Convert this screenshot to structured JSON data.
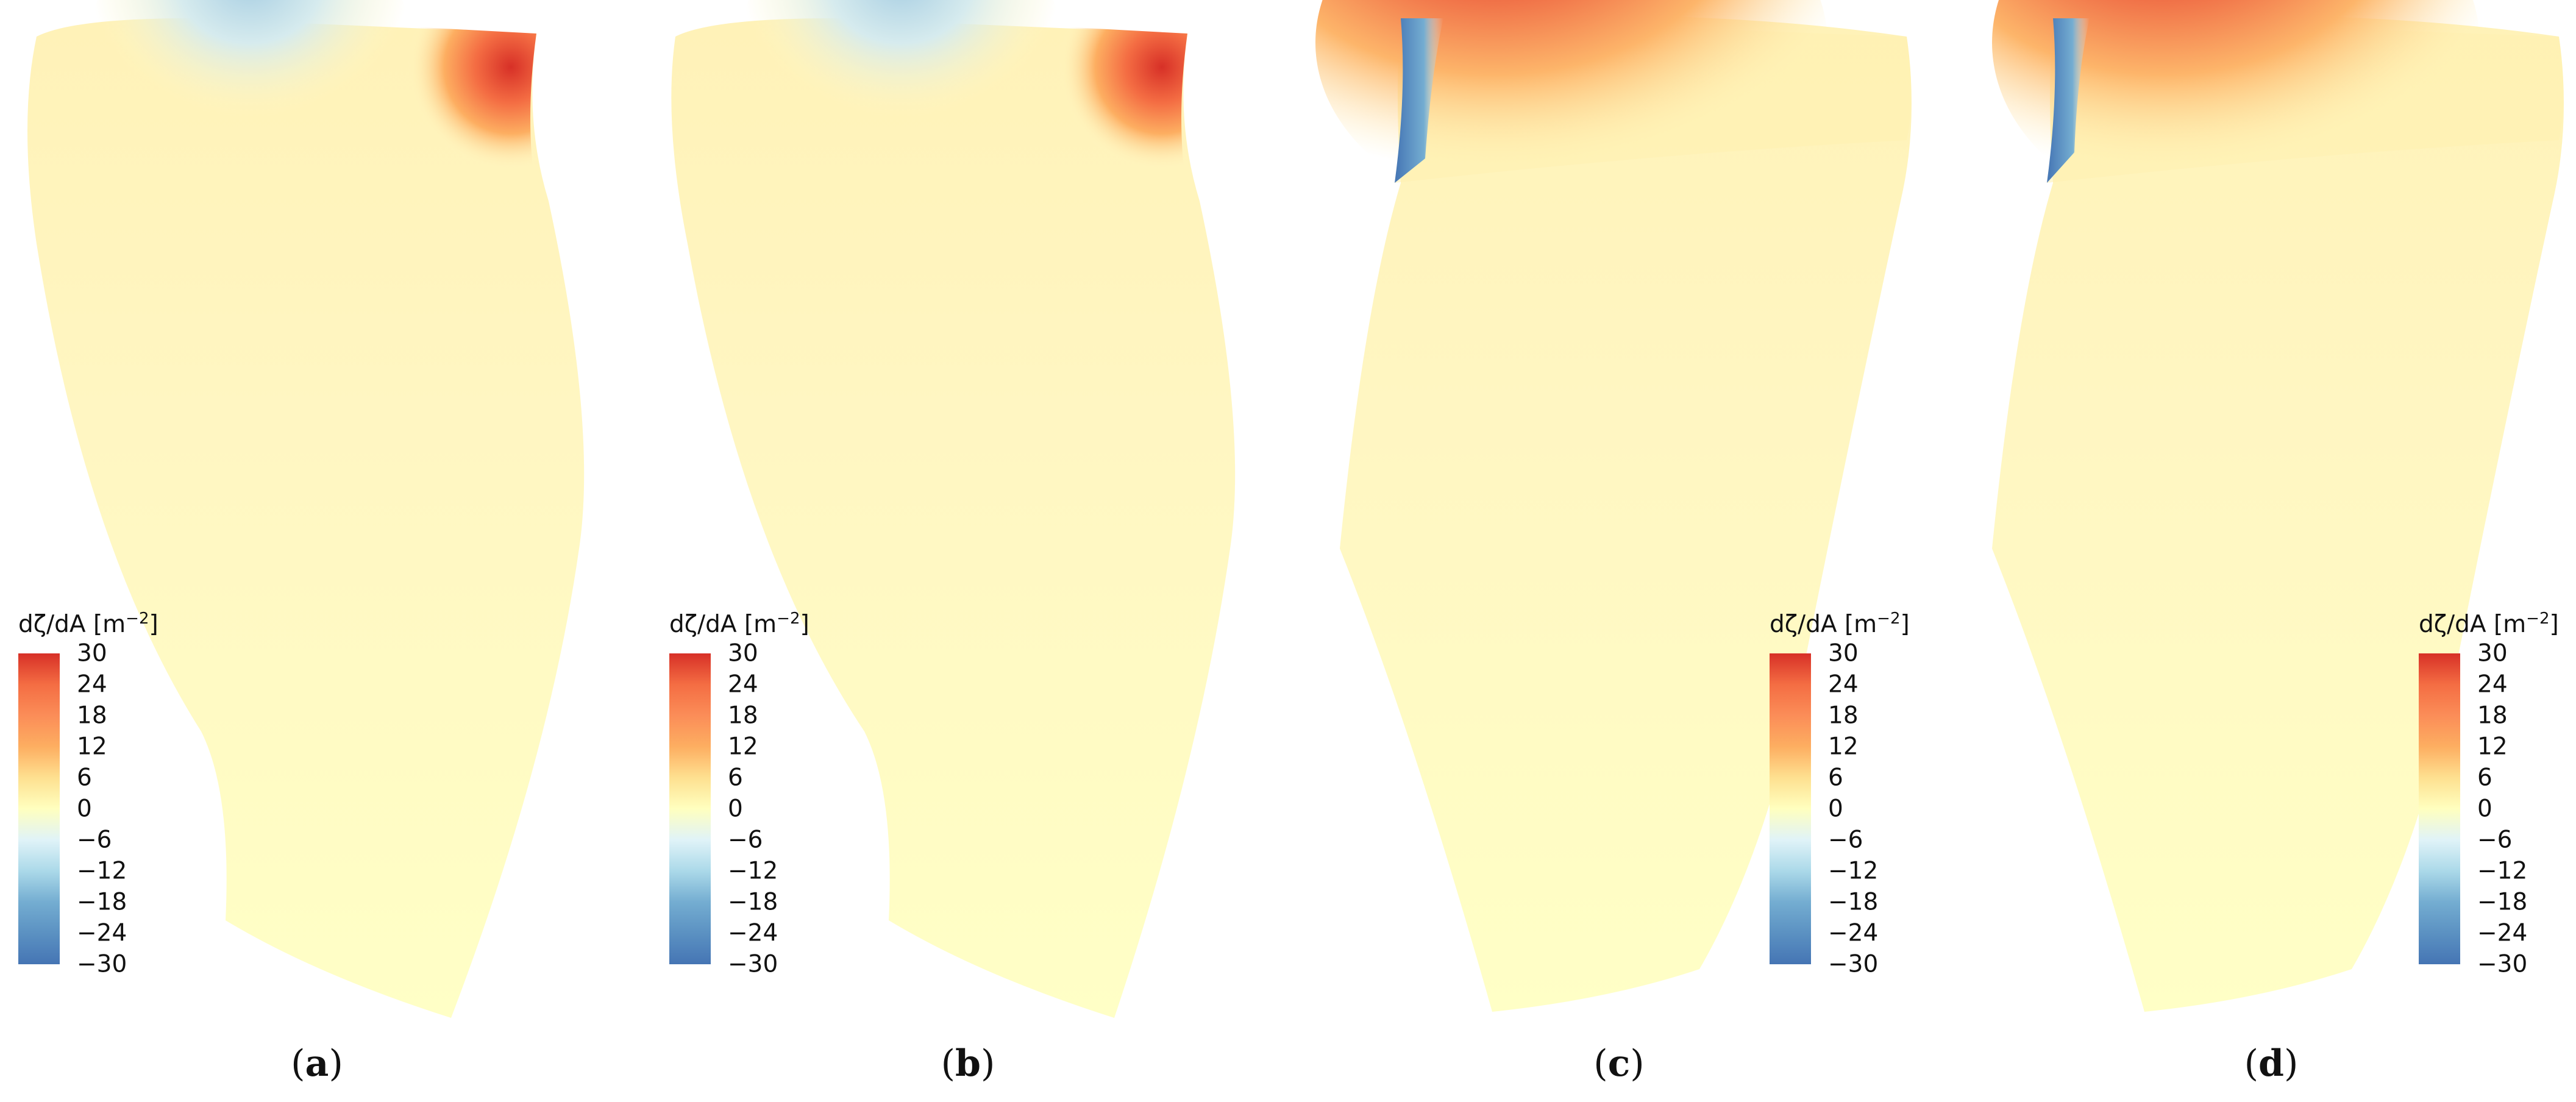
{
  "figure": {
    "colorbar": {
      "title_main": "dζ/dA [m",
      "title_sup": "−2",
      "title_close": "]",
      "ticks": [
        "30",
        "24",
        "18",
        "12",
        "6",
        "0",
        "−6",
        "−12",
        "−18",
        "−24",
        "−30"
      ],
      "range": [
        -30,
        30
      ],
      "colors": {
        "max": "#d73027",
        "high": "#f46d43",
        "mid_high": "#fdae61",
        "low_pos": "#fee090",
        "zero": "#ffffbf",
        "low_neg": "#e0f3f8",
        "mid_low": "#abd9e9",
        "low": "#74add1",
        "min": "#4575b4"
      }
    },
    "panels": [
      {
        "id": "a",
        "label_open": "(",
        "label": "a",
        "label_close": ")"
      },
      {
        "id": "b",
        "label_open": "(",
        "label": "b",
        "label_close": ")"
      },
      {
        "id": "c",
        "label_open": "(",
        "label": "c",
        "label_close": ")"
      },
      {
        "id": "d",
        "label_open": "(",
        "label": "d",
        "label_close": ")"
      }
    ]
  }
}
